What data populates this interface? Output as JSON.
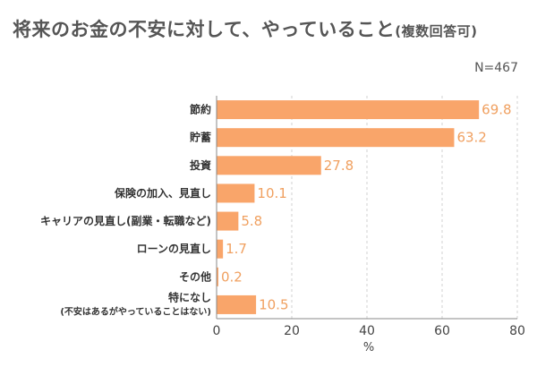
{
  "title_main": "将来のお金の不安に対して、やっていること",
  "title_note": "(複数回答可)",
  "sample_size": "N=467",
  "chart_data": {
    "type": "bar",
    "orientation": "horizontal",
    "title": "将来のお金の不安に対して、やっていること(複数回答可)",
    "categories": [
      [
        "節約"
      ],
      [
        "貯蓄"
      ],
      [
        "投資"
      ],
      [
        "保険の加入、見直し"
      ],
      [
        "キャリアの見直し(副業・転職など)"
      ],
      [
        "ローンの見直し"
      ],
      [
        "その他"
      ],
      [
        "特になし",
        "(不安はあるがやっていることはない)"
      ]
    ],
    "values": [
      69.8,
      63.2,
      27.8,
      10.1,
      5.8,
      1.7,
      0.2,
      10.5
    ],
    "value_labels": [
      "69.8",
      "63.2",
      "27.8",
      "10.1",
      "5.8",
      "1.7",
      "0.2",
      "10.5"
    ],
    "xlabel": "%",
    "xlim": [
      0,
      80
    ],
    "xticks": [
      "0",
      "20",
      "40",
      "60",
      "80"
    ],
    "grid": "vertical dashed",
    "bar_color": "#f9a56a",
    "value_label_color": "#f0a060"
  }
}
